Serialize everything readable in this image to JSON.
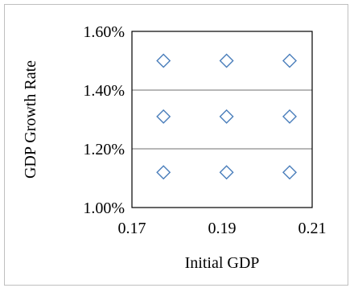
{
  "chart_data": {
    "type": "scatter",
    "title": "",
    "xlabel": "Initial GDP",
    "ylabel": "GDP Growth Rate",
    "xlim": [
      0.17,
      0.21
    ],
    "ylim": [
      0.01,
      0.016
    ],
    "x_ticks": [
      0.17,
      0.19,
      0.21
    ],
    "x_tick_labels": [
      "0.17",
      "0.19",
      "0.21"
    ],
    "y_ticks": [
      0.01,
      0.012,
      0.014,
      0.016
    ],
    "y_tick_labels": [
      "1.00%",
      "1.20%",
      "1.40%",
      "1.60%"
    ],
    "grid": "horizontal",
    "legend": "none",
    "marker": "diamond-open",
    "marker_color": "#4a7ebb",
    "points": [
      {
        "x": 0.177,
        "y": 0.015
      },
      {
        "x": 0.191,
        "y": 0.015
      },
      {
        "x": 0.205,
        "y": 0.015
      },
      {
        "x": 0.177,
        "y": 0.0131
      },
      {
        "x": 0.191,
        "y": 0.0131
      },
      {
        "x": 0.205,
        "y": 0.0131
      },
      {
        "x": 0.177,
        "y": 0.0112
      },
      {
        "x": 0.191,
        "y": 0.0112
      },
      {
        "x": 0.205,
        "y": 0.0112
      }
    ]
  }
}
